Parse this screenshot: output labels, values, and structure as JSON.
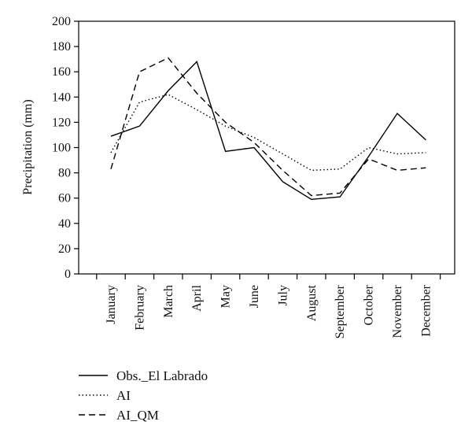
{
  "chart_data": {
    "type": "line",
    "title": "",
    "xlabel": "",
    "ylabel": "Precipitation (mm)",
    "ylim": [
      0,
      200
    ],
    "yticks": [
      0,
      20,
      40,
      60,
      80,
      100,
      120,
      140,
      160,
      180,
      200
    ],
    "grid": false,
    "legend_position": "bottom-left",
    "categories": [
      "January",
      "February",
      "March",
      "April",
      "May",
      "June",
      "July",
      "August",
      "September",
      "October",
      "November",
      "December"
    ],
    "series": [
      {
        "name": "Obs._El Labrado",
        "style": "solid",
        "color": "#000000",
        "values": [
          109,
          117,
          145,
          168,
          97,
          100,
          73,
          59,
          61,
          93,
          127,
          106
        ]
      },
      {
        "name": "AI",
        "style": "dotted",
        "color": "#000000",
        "values": [
          96,
          136,
          142,
          130,
          117,
          108,
          95,
          82,
          83,
          100,
          95,
          96
        ]
      },
      {
        "name": "AI_QM",
        "style": "dashed",
        "color": "#000000",
        "values": [
          83,
          160,
          171,
          143,
          120,
          104,
          82,
          62,
          64,
          91,
          82,
          84
        ]
      }
    ]
  }
}
